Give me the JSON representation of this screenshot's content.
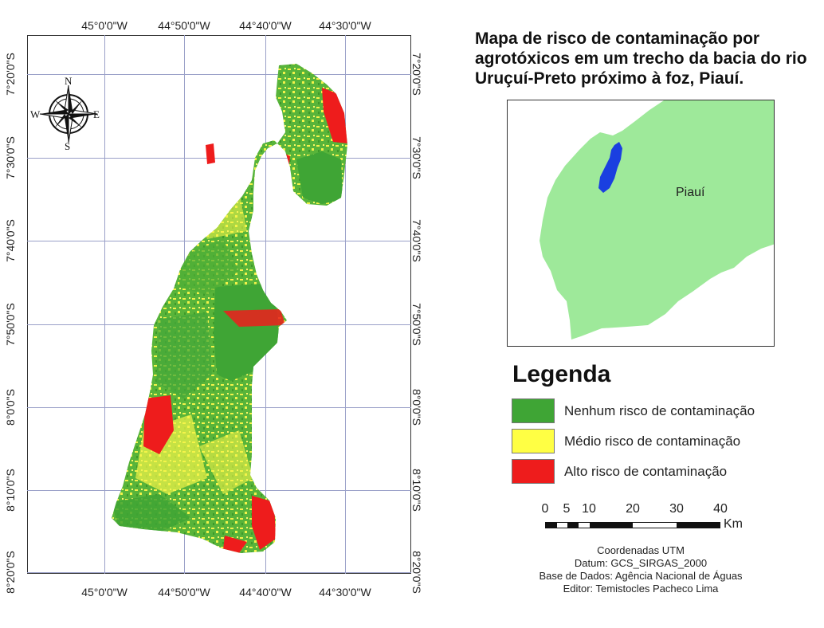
{
  "title": "Mapa de risco de contaminação por agrotóxicos em um trecho da bacia do rio Uruçuí-Preto próximo à foz, Piauí.",
  "map": {
    "lon_labels_top": [
      "45°0'0\"W",
      "44°50'0\"W",
      "44°40'0\"W",
      "44°30'0\"W"
    ],
    "lon_labels_bottom": [
      "45°0'0\"W",
      "44°50'0\"W",
      "44°40'0\"W",
      "44°30'0\"W"
    ],
    "lat_labels": [
      "7°20'0\"S",
      "7°30'0\"S",
      "7°40'0\"S",
      "7°50'0\"S",
      "8°0'0\"S",
      "8°10'0\"S",
      "8°20'0\"S"
    ],
    "compass": {
      "n": "N",
      "s": "S",
      "e": "E",
      "w": "W"
    }
  },
  "inset": {
    "label": "Piauí",
    "land_color": "#9ee99a",
    "area_color": "#1a3fe0"
  },
  "legend": {
    "title": "Legenda",
    "items": [
      {
        "label": "Nenhum risco de contaminação",
        "color": "#3fa535"
      },
      {
        "label": "Médio risco de contaminação",
        "color": "#ffff44"
      },
      {
        "label": "Alto risco de contaminação",
        "color": "#ee1c1c"
      }
    ]
  },
  "scale": {
    "ticks": [
      "0",
      "5",
      "10",
      "20",
      "30",
      "40"
    ],
    "unit": "Km"
  },
  "credits": {
    "line1": "Coordenadas UTM",
    "line2": "Datum: GCS_SIRGAS_2000",
    "line3": "Base de Dados: Agência Nacional de Águas",
    "line4": "Editor: Temistocles Pacheco Lima"
  }
}
